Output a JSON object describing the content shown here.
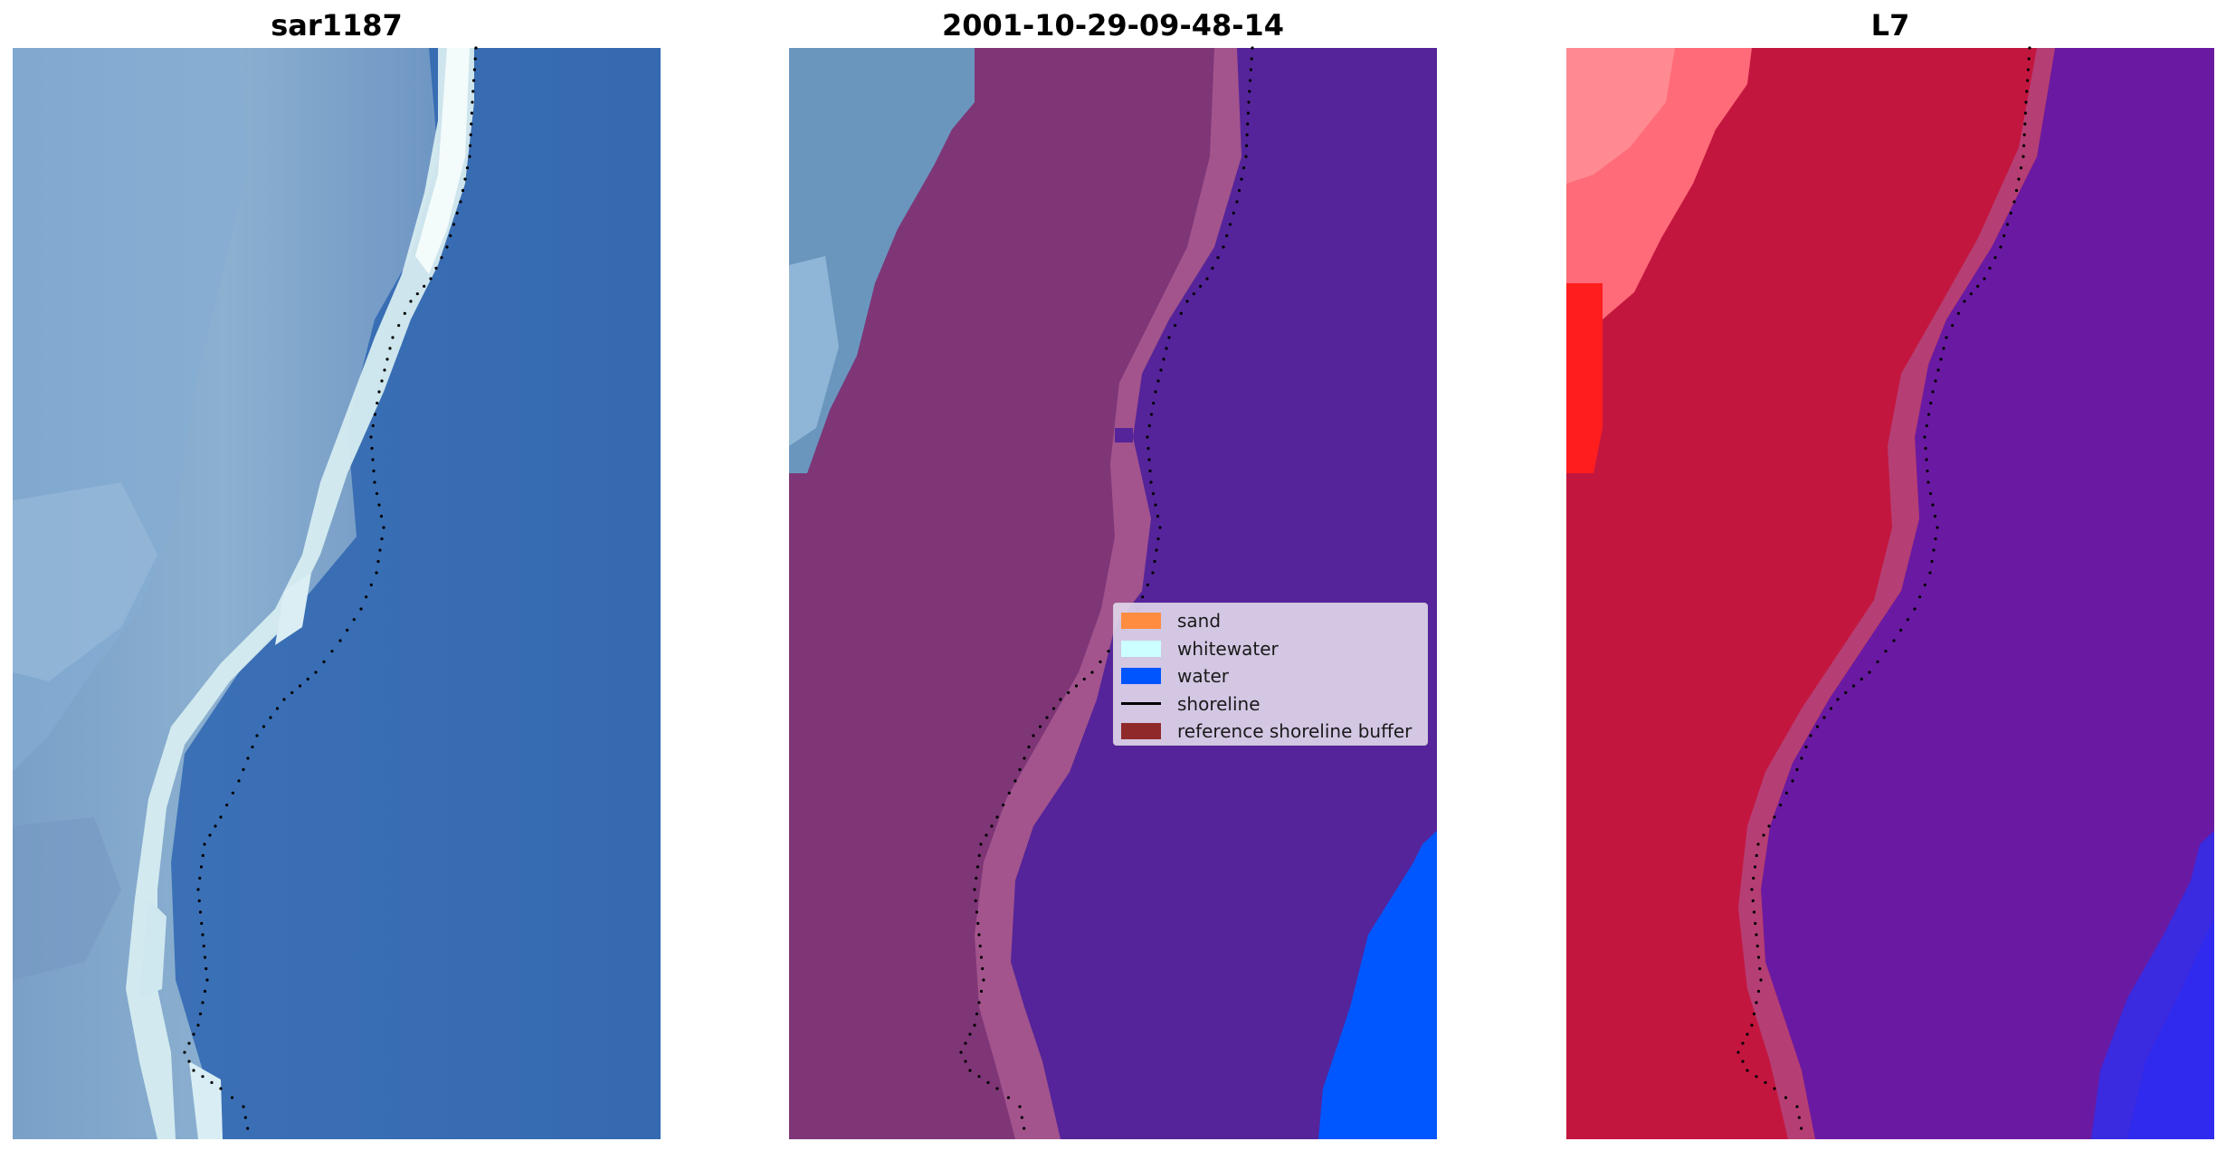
{
  "titles": [
    "sar1187",
    "2001-10-29-09-48-14",
    "L7"
  ],
  "legend": {
    "items": [
      {
        "label": "sand",
        "color": "#ff8c3f",
        "kind": "patch"
      },
      {
        "label": "whitewater",
        "color": "#ccffff",
        "kind": "patch"
      },
      {
        "label": "water",
        "color": "#0055ff",
        "kind": "patch"
      },
      {
        "label": "shoreline",
        "color": "#000000",
        "kind": "line"
      },
      {
        "label": "reference shoreline buffer",
        "color": "#902a2a",
        "kind": "patch"
      }
    ]
  },
  "colors": {
    "rgb_water": "#3a6db0",
    "rgb_land": "#7c9fc8",
    "rgb_surf": "#e8f6f4",
    "class_water": "#55249a",
    "class_buffer": "#7e3677",
    "class_buffer_light": "#b26496",
    "class_ocean": "#0057ff",
    "class_land_rgb": "#6a96bd",
    "mndwi_land": "#c3163f",
    "mndwi_land_bright": "#ff2a2a",
    "mndwi_water": "#6a1aa2",
    "mndwi_deep": "#3a2ae0",
    "shoreline": "#000000"
  }
}
